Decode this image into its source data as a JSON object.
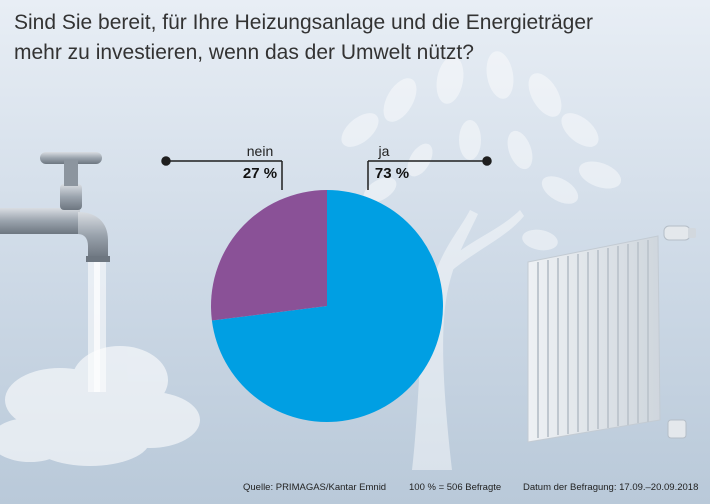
{
  "title": {
    "line1": "Sind Sie bereit, für Ihre Heizungsanlage und die Energieträger",
    "line2": "mehr zu investieren, wenn das der Umwelt nützt?"
  },
  "chart_data": {
    "type": "pie",
    "slices": [
      {
        "label": "ja",
        "value": 73,
        "value_label": "73 %",
        "color": "#009fe3"
      },
      {
        "label": "nein",
        "value": 27,
        "value_label": "27 %",
        "color": "#8a5197"
      }
    ]
  },
  "footer": {
    "source": "Quelle: PRIMAGAS/Kantar Emnid",
    "base": "100 % = 506 Befragte",
    "date": "Datum der Befragung: 17.09.–20.09.2018"
  },
  "decoration": {
    "icons": [
      "water-tap-icon",
      "tree-icon",
      "radiator-icon",
      "steam-cloud-icon"
    ]
  }
}
